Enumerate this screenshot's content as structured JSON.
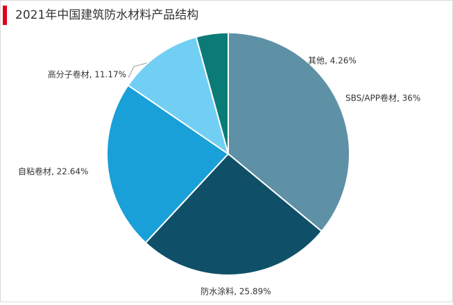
{
  "chart_data": {
    "type": "pie",
    "title": "2021年中国建筑防水材料产品结构",
    "categories": [
      "SBS/APP卷材",
      "防水涂料",
      "自粘卷材",
      "高分子卷材",
      "其他"
    ],
    "values": [
      36,
      25.89,
      22.64,
      11.17,
      4.26
    ],
    "value_labels": [
      "SBS/APP卷材, 36%",
      "防水涂料, 25.89%",
      "自粘卷材, 22.64%",
      "高分子卷材, 11.17%",
      "其他, 4.26%"
    ],
    "colors": [
      "#5e91a5",
      "#0f5068",
      "#19a0d8",
      "#72cff4",
      "#0b7b77"
    ]
  }
}
